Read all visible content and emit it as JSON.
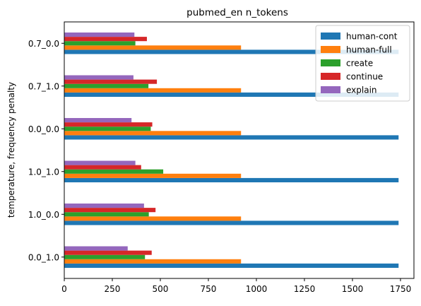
{
  "chart_data": {
    "type": "bar",
    "orientation": "horizontal",
    "title": "pubmed_en n_tokens",
    "xlabel": "",
    "ylabel": "temperature, frequency penalty",
    "categories": [
      "0.0_1.0",
      "1.0_0.0",
      "1.0_1.0",
      "0.0_0.0",
      "0.7_1.0",
      "0.7_0.0"
    ],
    "xlim": [
      0,
      1820
    ],
    "xticks": [
      0,
      250,
      500,
      750,
      1000,
      1250,
      1500,
      1750
    ],
    "legend_position": "top-right",
    "grid": false,
    "series": [
      {
        "name": "human-cont",
        "color": "#1f77b4",
        "values": [
          1740,
          1740,
          1740,
          1740,
          1740,
          1740
        ]
      },
      {
        "name": "human-full",
        "color": "#ff7f0e",
        "values": [
          920,
          920,
          920,
          920,
          920,
          920
        ]
      },
      {
        "name": "create",
        "color": "#2ca02c",
        "values": [
          420,
          440,
          515,
          450,
          438,
          370
        ]
      },
      {
        "name": "continue",
        "color": "#d62728",
        "values": [
          455,
          475,
          400,
          458,
          482,
          430
        ]
      },
      {
        "name": "explain",
        "color": "#9467bd",
        "values": [
          330,
          415,
          370,
          350,
          360,
          365
        ]
      }
    ]
  }
}
